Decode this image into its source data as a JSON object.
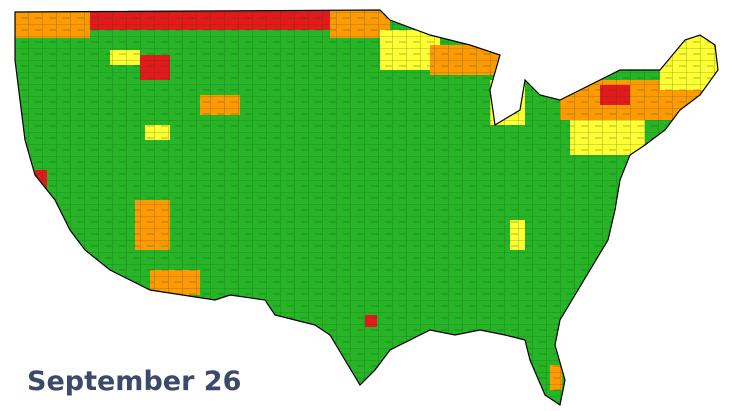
{
  "map": {
    "date_label": "September 26"
  }
}
